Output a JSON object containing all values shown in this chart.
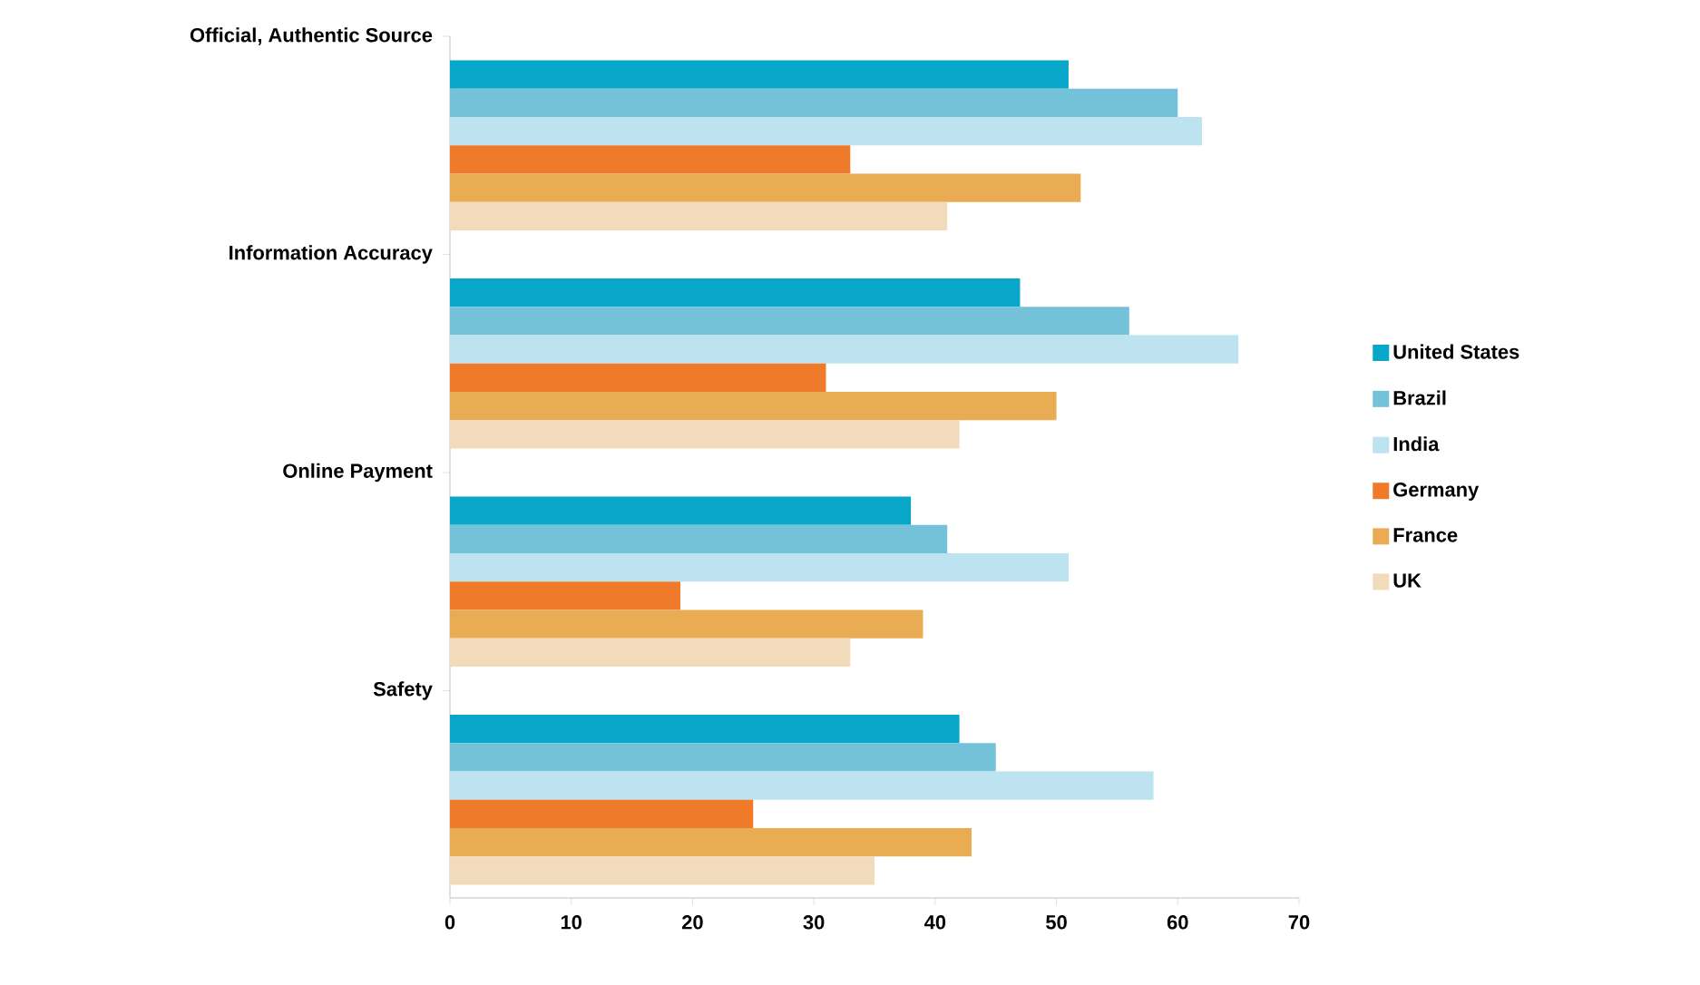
{
  "chart_data": {
    "type": "bar",
    "orientation": "horizontal",
    "categories": [
      "Official, Authentic Source",
      "Information Accuracy",
      "Online Payment",
      "Safety"
    ],
    "series": [
      {
        "name": "United States",
        "color": "#08a6c8",
        "values": [
          51,
          47,
          38,
          42
        ]
      },
      {
        "name": "Brazil",
        "color": "#74c2da",
        "values": [
          60,
          56,
          41,
          45
        ]
      },
      {
        "name": "India",
        "color": "#bde2f0",
        "values": [
          62,
          65,
          51,
          58
        ]
      },
      {
        "name": "Germany",
        "color": "#ef7a2a",
        "values": [
          33,
          31,
          19,
          25
        ]
      },
      {
        "name": "France",
        "color": "#e9ac52",
        "values": [
          52,
          50,
          39,
          43
        ]
      },
      {
        "name": "UK",
        "color": "#f1dbbb",
        "values": [
          41,
          42,
          33,
          35
        ]
      }
    ],
    "xlim": [
      0,
      70
    ],
    "xticks": [
      0,
      10,
      20,
      30,
      40,
      50,
      60,
      70
    ],
    "legend": "right",
    "grid": false
  }
}
